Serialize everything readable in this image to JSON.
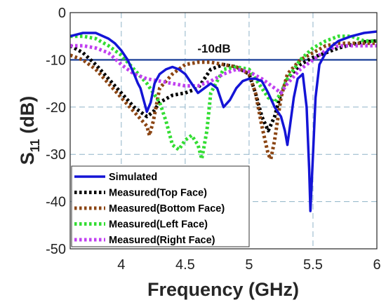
{
  "chart_data": {
    "type": "line",
    "xlabel": "Frequency (GHz)",
    "ylabel_main": "S",
    "ylabel_sub": "11",
    "ylabel_unit": " (dB)",
    "xlim": [
      3.6,
      6.0
    ],
    "ylim": [
      -50,
      0
    ],
    "xticks": [
      4,
      4.5,
      5,
      5.5,
      6
    ],
    "yticks": [
      0,
      -10,
      -20,
      -30,
      -40,
      -50
    ],
    "grid": true,
    "legend_position": "bottom-left",
    "reference_line": {
      "y": -10,
      "label": "-10dB",
      "color": "#2E4FA0"
    },
    "series": [
      {
        "name": "Simulated",
        "color": "#1414D6",
        "style": "solid",
        "x": [
          3.6,
          3.7,
          3.8,
          3.9,
          3.95,
          4.0,
          4.05,
          4.1,
          4.13,
          4.15,
          4.18,
          4.2,
          4.23,
          4.26,
          4.3,
          4.35,
          4.4,
          4.45,
          4.5,
          4.55,
          4.6,
          4.65,
          4.7,
          4.75,
          4.8,
          4.85,
          4.9,
          4.95,
          5.0,
          5.05,
          5.1,
          5.15,
          5.2,
          5.25,
          5.28,
          5.3,
          5.32,
          5.35,
          5.38,
          5.42,
          5.45,
          5.47,
          5.48,
          5.5,
          5.52,
          5.55,
          5.6,
          5.65,
          5.7,
          5.8,
          5.9,
          6.0
        ],
        "y": [
          -5,
          -4.3,
          -4.3,
          -5.5,
          -6.5,
          -8,
          -10,
          -13,
          -15,
          -16,
          -19,
          -21,
          -19,
          -15,
          -13,
          -12,
          -11.5,
          -12,
          -13,
          -15,
          -17,
          -16,
          -15,
          -16,
          -20,
          -18.5,
          -16,
          -14.5,
          -14,
          -14,
          -14.5,
          -17,
          -20,
          -22,
          -25,
          -28,
          -24,
          -18,
          -14,
          -13,
          -20,
          -33,
          -42,
          -30,
          -18,
          -11,
          -8.5,
          -7,
          -6,
          -5,
          -4.3,
          -4
        ]
      },
      {
        "name": "Measured(Top Face)",
        "color": "#000000",
        "style": "dotted",
        "x": [
          3.6,
          3.7,
          3.8,
          3.9,
          4.0,
          4.1,
          4.2,
          4.25,
          4.3,
          4.4,
          4.5,
          4.6,
          4.65,
          4.7,
          4.8,
          4.9,
          5.0,
          5.05,
          5.1,
          5.15,
          5.2,
          5.25,
          5.3,
          5.4,
          5.5,
          5.6,
          5.7,
          5.8,
          5.9,
          6.0
        ],
        "y": [
          -7,
          -8.5,
          -11,
          -14,
          -17,
          -20,
          -22,
          -21,
          -19,
          -17.5,
          -17,
          -16,
          -14,
          -12,
          -11,
          -11.5,
          -13,
          -17,
          -22,
          -25,
          -22,
          -17,
          -14,
          -11,
          -9.5,
          -8.5,
          -7.5,
          -6.8,
          -6.2,
          -6
        ]
      },
      {
        "name": "Measured(Bottom Face)",
        "color": "#8B4513",
        "style": "dotted",
        "x": [
          3.6,
          3.7,
          3.8,
          3.9,
          4.0,
          4.1,
          4.2,
          4.22,
          4.25,
          4.3,
          4.4,
          4.5,
          4.6,
          4.7,
          4.8,
          4.9,
          5.0,
          5.05,
          5.1,
          5.15,
          5.17,
          5.2,
          5.25,
          5.3,
          5.4,
          5.5,
          5.6,
          5.7,
          5.8,
          5.9,
          6.0
        ],
        "y": [
          -9,
          -10,
          -12,
          -15,
          -18,
          -21,
          -24,
          -26,
          -23,
          -16,
          -13,
          -11,
          -10.5,
          -10.5,
          -11,
          -11.5,
          -13,
          -17,
          -24,
          -30,
          -31,
          -27,
          -18,
          -13,
          -10,
          -8.5,
          -7,
          -6.5,
          -6.5,
          -6.5,
          -6.5
        ]
      },
      {
        "name": "Measured(Left Face)",
        "color": "#33DD33",
        "style": "dotted",
        "x": [
          3.6,
          3.7,
          3.8,
          3.9,
          4.0,
          4.1,
          4.2,
          4.3,
          4.35,
          4.4,
          4.45,
          4.5,
          4.55,
          4.6,
          4.63,
          4.67,
          4.7,
          4.8,
          4.9,
          5.0,
          5.05,
          5.1,
          5.15,
          5.2,
          5.25,
          5.3,
          5.4,
          5.5,
          5.6,
          5.7,
          5.8,
          5.9,
          6.0
        ],
        "y": [
          -5,
          -5,
          -5.5,
          -7,
          -9,
          -12,
          -15,
          -19,
          -23,
          -28,
          -29,
          -27,
          -26,
          -28,
          -31,
          -25,
          -17,
          -12,
          -11.5,
          -12,
          -14,
          -16,
          -18,
          -19,
          -17,
          -14,
          -10,
          -7.5,
          -6,
          -5,
          -5,
          -6,
          -6
        ]
      },
      {
        "name": "Measured(Right Face)",
        "color": "#C040F0",
        "style": "dotted",
        "x": [
          3.6,
          3.7,
          3.8,
          3.9,
          4.0,
          4.1,
          4.2,
          4.3,
          4.4,
          4.5,
          4.6,
          4.7,
          4.8,
          4.9,
          5.0,
          5.1,
          5.2,
          5.25,
          5.3,
          5.4,
          5.5,
          5.6,
          5.7,
          5.8,
          5.9,
          6.0
        ],
        "y": [
          -7,
          -7,
          -7.5,
          -8.5,
          -11,
          -13,
          -14,
          -14.5,
          -15,
          -15.5,
          -15.5,
          -14.5,
          -13,
          -12,
          -12.5,
          -14,
          -16,
          -17,
          -15,
          -12,
          -10,
          -8,
          -7,
          -7,
          -7,
          -7
        ]
      }
    ]
  }
}
